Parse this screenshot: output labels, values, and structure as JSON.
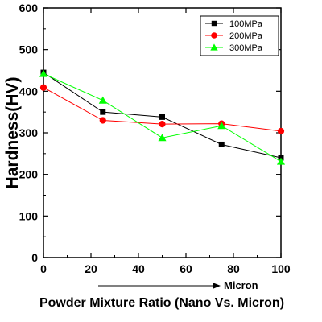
{
  "chart_data": {
    "type": "line",
    "xlabel": "Powder Mixture Ratio (Nano Vs. Micron)",
    "ylabel": "Hardness(HV)",
    "arrow_label": "Micron",
    "xlim": [
      0,
      100
    ],
    "ylim": [
      0,
      600
    ],
    "x_ticks": [
      0,
      20,
      40,
      60,
      80,
      100
    ],
    "y_ticks": [
      0,
      100,
      200,
      300,
      400,
      500,
      600
    ],
    "grid": false,
    "legend_position": "top-right",
    "x": [
      0,
      25,
      50,
      75,
      100
    ],
    "series": [
      {
        "name": "100MPa",
        "color": "#000000",
        "marker": "square",
        "values": [
          445,
          350,
          338,
          272,
          240
        ]
      },
      {
        "name": "200MPa",
        "color": "#ff0000",
        "marker": "circle",
        "values": [
          409,
          330,
          321,
          322,
          304
        ]
      },
      {
        "name": "300MPa",
        "color": "#00ff00",
        "marker": "triangle",
        "values": [
          442,
          378,
          288,
          317,
          231
        ]
      }
    ]
  }
}
